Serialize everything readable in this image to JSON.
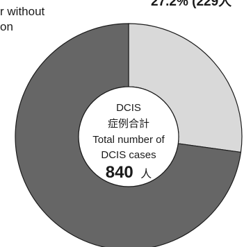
{
  "chart_data": {
    "type": "pie",
    "style": "donut",
    "slices": [
      {
        "label": "",
        "value": 27.2,
        "color": "#d9d9d9"
      },
      {
        "label": "",
        "value": 72.8,
        "color": "#666666"
      }
    ],
    "outside_labels": {
      "top_right": "27.2% (229人",
      "top_left_line1": "r without",
      "top_left_line2": "on"
    },
    "center": {
      "line1": "DCIS",
      "line2": "症例合計",
      "line3": "Total number of",
      "line4": "DCIS cases",
      "total_value": "840",
      "total_unit": "人"
    }
  }
}
